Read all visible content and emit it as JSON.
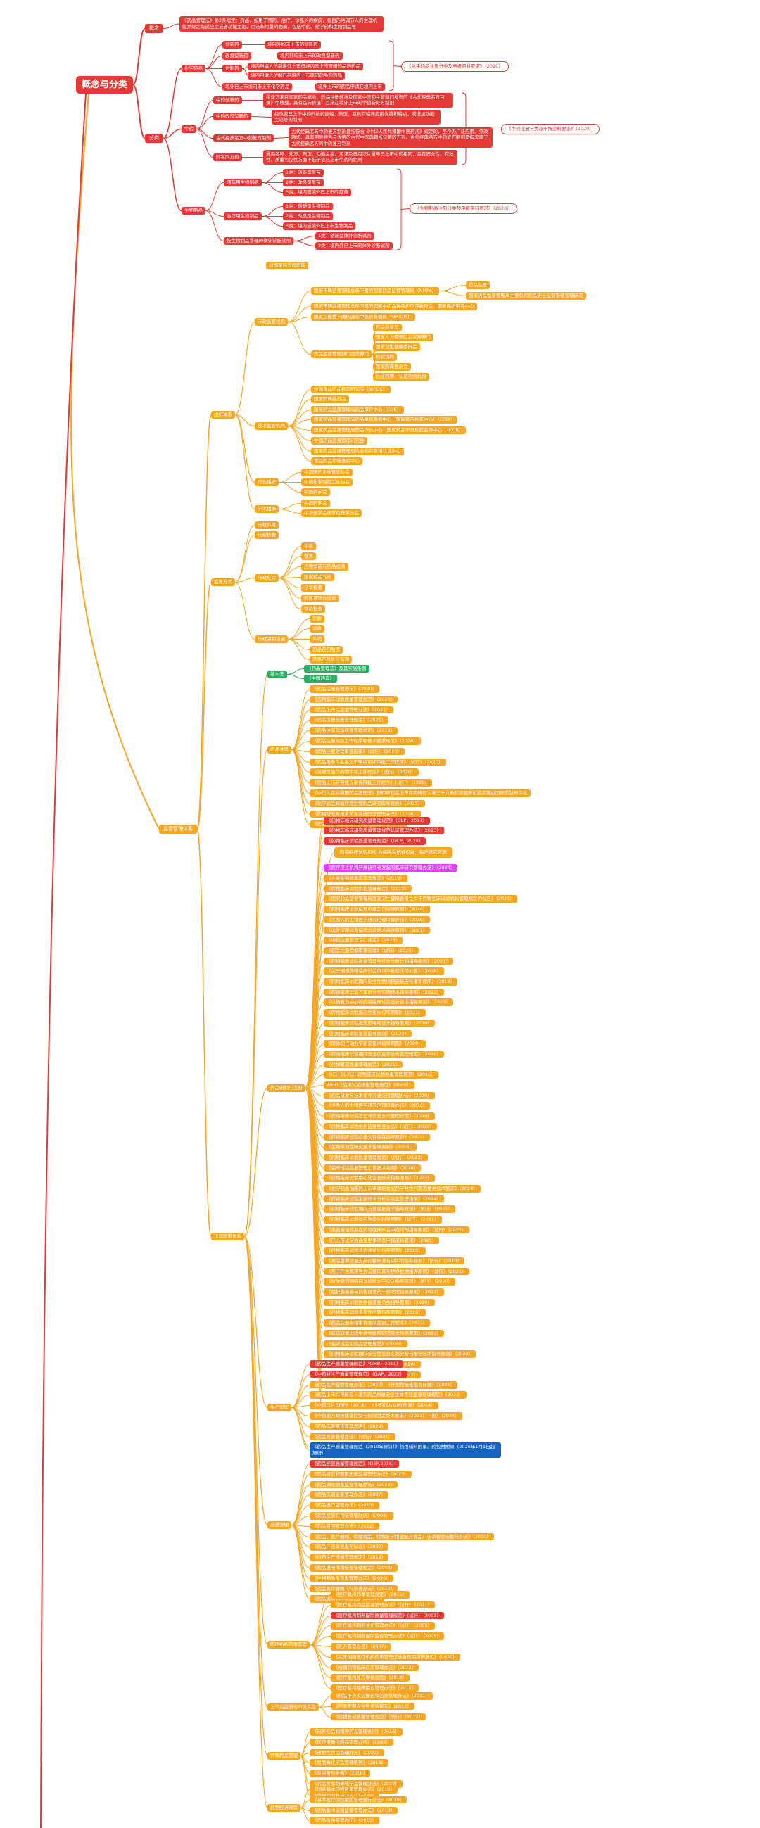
{
  "root": "概念与分类",
  "concept": {
    "label": "概念",
    "text": "《药品管理法》第2条规定：药品，指用于预防、治疗、诊断人的疾病，有目的地调节人的生理机能并规定有适应症或者功能主治、用法和用量的物质，包括中药、化学药和生物制品等"
  },
  "classify": {
    "label": "分类",
    "chem": {
      "label": "化学药品",
      "items": [
        "创新药",
        "改良型新药",
        "仿制药",
        "境外已上市境内未上市化学药品"
      ],
      "details": [
        "境内外均未上市的创新药",
        "境内外均未上市的改良型新药",
        "境内申请人仿制境外上市但境内未上市原研药品的药品",
        "境内申请人仿制已在境内上市原研药品的药品",
        "境外上市的药品申请在境内上市"
      ],
      "ref": "《化学药品注册分类及申报资料要求》（2020）"
    },
    "tcm": {
      "label": "中药",
      "items": [
        "中药创新药",
        "中药改良型新药",
        "古代经典名方中药复方制剂",
        "同名同方药"
      ],
      "details": [
        "指处方未在国家药品标准、药品注册标准及国家中医药主管部门发布的《古代经典名方目录》中收载，具有临床价值，且未在境外上市的中药新处方制剂",
        "指改变已上市中药的给药途径、剂型，且具有临床应用优势和特点，或增加功能主治等的制剂",
        "古代经典名方中药复方制剂是指符合《中华人民共和国中医药法》规定的，至今仍广泛应用、疗效确切、具有明显特色与优势的古代中医典籍所记载的方剂。古代经典名方中药复方制剂是指来源于古代经典名方的中药复方制剂",
        "通用名称、处方、剂型、功能主治、用法及日用饮片量与已上市中药相同，且在安全性、有效性、质量可控性方面不低于该已上市中药的制剂"
      ],
      "ref": "《中药注册分类及申报资料要求》（2020）"
    },
    "bio": {
      "label": "生物制品",
      "items": [
        "预防用生物制品",
        "治疗用生物制品",
        "按生物制品管理的体外诊断试剂"
      ],
      "details": [
        "1类：创新型疫苗",
        "2类：改良型疫苗",
        "3类：境内或境外已上市的疫苗",
        "1类：创新型生物制品",
        "2类：改良型生物制品",
        "3类：境内或境外已上市生物制品",
        "1类：创新型体外诊断试剂",
        "2类：境内外已上市的体外诊断试剂"
      ],
      "ref": "《生物制品注册分类及申报资料要求》（2020）"
    }
  },
  "system": {
    "label": "监管管理体系",
    "header": "1)国家药监局职能",
    "org": {
      "label": "组织体系",
      "admin": {
        "label": "行政监管机构",
        "items": [
          "国家市场监督管理总局下属的国家药品监督管理局（NMPA）",
          "国家市场监督管理总局下属的国家中药品种保护审评委员会、国家保护审评中心",
          "国家卫健委下属的国家中医药管理局（NATCM）",
          "药品监督管理部门组成部门"
        ],
        "nmpa": [
          "药品注册",
          "国家药品监督管理局主要负责药品安全监督管理管理研究"
        ],
        "parts": [
          "药品监督司",
          "国家人力资源社会保障部门",
          "国家卫生健康委员会",
          "检验机构",
          "国家药典委员会",
          "执业药师、认证检验机构"
        ]
      },
      "tech": {
        "label": "技术监管机构",
        "items": [
          "中国食品药品检定研究院（NIFDC）",
          "国家药典委员会",
          "国家药品监督管理局药品审评中心（CDE）",
          "国家药品监督管理局药品审核查验中心（国家疫苗检查中心）（CFDI）",
          "国家药品监督管理局药品评价中心（国家药品不良反应监测中心）（CDR）",
          "中国药品监督管理研究会",
          "国家药品监督管理局执业药师资格认证中心",
          "食品药品审核查验中心"
        ]
      },
      "industry": {
        "label": "行业组织",
        "items": [
          "中国医药企业管理协会",
          "中国化学制药工业协会",
          "中国药学会"
        ]
      },
      "academic": {
        "label": "学术组织",
        "items": [
          "中国药学会",
          "中华医学会医学伦理学分会"
        ]
      }
    },
    "regulation": {
      "label": "监管方式",
      "items": [
        "行政许可",
        "行政检查",
        "行政处罚",
        "行政强制措施"
      ],
      "check": [
        "审批",
        "备案",
        "药物警戒与药品追溯",
        "国家药品飞检",
        "日常检查",
        "跨区域联合检查",
        "体系检查"
      ],
      "enforce": [
        "罚款",
        "没收",
        "吊销",
        "药品召回制度",
        "药品不良反应监测"
      ]
    },
    "laws": {
      "label": "法规政策体系",
      "basic": {
        "label": "基本法",
        "items": [
          "《药品管理法》及其实施条例",
          "《中国药典》"
        ]
      },
      "reg": {
        "label": "药品注册",
        "items": [
          "《药品注册管理办法》（2020）",
          "《药物临床试验质量管理规范》（2020）",
          "《药品上市后变更管理办法》（2021）",
          "《药品注册核查管理规定》（2021）",
          "《药品注册现场核查管理规定》（2019）",
          "《药品注册检验工作程序和技术要求规范》（2020）",
          "《药品注册受理审查指南》（试行）（2020）",
          "《药品附条件批准上市申请审评审批工作程序》（试行）（2020）",
          "《突破性治疗药物审评工作程序》（试行）（2020）",
          "《药品上市许可优先审评审批工作程序》（试行）（2020）",
          "《中华人民共和国药品管理法》第四章药品上市许可持有人第三十八条药物临床试验实施由国家药监局审批",
          "《化学药品和治疗用生物制品研究指导原则》（2023）",
          "《药物研发与技术审评沟通交流管理办法》（2018）",
          "《药品审评审批信息公开管理办法》（2021）"
        ]
      },
      "research": {
        "label": "药品研制与注册",
        "head": [
          "《药物非临床研究质量管理规范》（GLP，2017）",
          "《药物非临床研究质量管理规范认证管理办法》（2023）",
          "《药物临床试验质量管理规范》（GCP，2020）"
        ],
        "note": "药物临床试验机构 为保障受试者权益，临床研究实施",
        "magenta": "《医疗卫生机构开展研究者发起的临床研究管理办法》（2024）",
        "items": [
          "《人类生物样本库管理规范》（2019）",
          "《药物临床试验机构管理规定》（2019）",
          "《国家药品监督管理局国家卫生健康委员会关于药物临床试验机构管理规定的公告》（2022）",
          "《药物临床试验伦理审查工作指导原则》（2010）",
          "《涉及人的生物医学研究伦理审查办法》（2016）",
          "《体外诊断试剂临床试验技术指导原则》（2021）",
          "《中药注册管理专门规定》（2023）",
          "《药品注册受理审查指南》（试行）（2020）",
          "《药物临床试验数据管理与统计分析计划指导原则》（2021）",
          "《关于调整药物临床试验审评审批程序的公告》（2018）",
          "《药物临床试验期间安全性数据快速报告标准和程序》（2018）",
          "《药物临床试验方案设计与实施技术指导原则》（2022）",
          "《以患者为中心的药物临床试验设计技术指导原则》（2023）",
          "《药物临床试验适应性设计指导原则》（2021）",
          "《药物临床试验富集策略与设计指导原则》（2020）",
          "《药物临床试验盲法指导原则》（2022）",
          "《群体药代动力学研究技术指导原则》（2020）",
          "《药物临床试验期间安全信息评估与管理规范》（2020）",
          "《药物警戒质量管理规范》（2021）",
          "《ICH E6(R2) 药物临床试验质量管理规范》（2016）",
          "WHO《临床试验质量管理规范》（2005）",
          "《药品研发与技术审评沟通交流管理办法》（2020）",
          "《涉及人的生物医学研究伦理审查办法》（2016）",
          "《药物临床试验登记与信息公示管理规范》（2020）",
          "《药物临床试验机构监督检查办法》（试行）（2023）",
          "《药物临床试验必备文件保存指导原则》（2020）",
          "《生物等效性研究技术指导原则》（2016）",
          "《药物临床试验质量管理规范》（试行）（2023）",
          "《临床试验数据管理工作技术指南》（2016）",
          "《药物临床试验中心化监查统计指导原则》（2022）",
          "《化学药品创新药上市申请前会议药学共性问题及相关技术要求》（2024）",
          "《药物临床试验生物样本分析实验室管理指南》（2024）",
          "《药物临床试验期间方案变更技术指导原则》（试行）（2022）",
          "《药物临床试验适应性设计指导原则》（试行）（2021）",
          "《患者报告结局在药物临床研发中应用的指导原则》（试行）（2021）",
          "《已上市化学药品变更事项及申报资料要求》（2021）",
          "《药物临床试验非劣效设计指导原则》（2020）",
          "《真实世界证据支持药物研发与审评的指导原则》（试行）（2020）",
          "《用于产生真实世界证据的真实世界数据指导原则》（试行）（2021）",
          "《抗肿瘤药物临床试验统计学设计指导原则》（试行）（2020）",
          "《组织患者参与药物研发的一般考虑指导原则》（2022）",
          "《药物临床试验数据监查委员会指导原则》（2020）",
          "《药物临床试验多重性问题指导原则》（2020）",
          "《药品注册申请审评期间变更工作程序》（2022）",
          "《新药研发过程中食物影响研究技术指导原则》（2021）",
          "《临床试验用药品管理规范》（2020）",
          "《药物临床试验期间安全性信息汇总分析与报告技术指导原则》（2023）",
          "《药物临床试验数据递交指导原则》（2020）",
          "《药物临床试验随机分配指导原则》（2022）",
          "《临床研究数据管理与统计分析计划和报告指导原则》（2021）",
          "《模型引导的药物研发技术指导原则》（2020）",
          "《罕见疾病药物临床研发技术指导原则》（2021）",
          "《基于人用经验的中药复方制剂新药临床研发指导原则》（2024）"
        ]
      },
      "prod": {
        "label": "生产管理",
        "items": [
          "《药品生产质量管理规范》（GMP，2011）",
          "《中药材生产质量管理规范》（GAP，2022）",
          "《药品生产监督管理办法》（2020）",
          "《药品上市许可持有人落实药品质量安全主体责任监督管理规定》（2022）",
          "《中药饮片GMP》（2014） 《中药饮片GMP附录》（2014）",
          "《中药配方颗粒质量控制与标准制定技术要求》（2021）",
          "《药品年度报告管理规定》（2022）",
          "《药品检查管理办法》（试行）（2021）",
          "《药品记录与数据管理要求》（试行）（2020）"
        ],
        "blue": "《药品生产质量管理规范（2010年修订）》药用辅料附录、药包材附录（2026年1月1日起施行）"
      },
      "biz": {
        "label": "流通管理",
        "items": [
          "《药品经营质量管理规范》（GSP,2016）",
          "《药品经营和使用质量监督管理办法》（2023）",
          "《药品网络销售监督管理办法》（2022）",
          "《药品流通监督管理办法》（2007）",
          "《药品进口管理办法》（2012）",
          "《药品经营许可证管理办法》（2004）",
          "《药品召回管理办法》（2022）",
          "《药品、医疗器械、保健食品、特殊医学用途配方食品广告审查管理暂行办法》（2020）",
          "《药品广告审查发布标准》（2007）",
          "《疫苗生产流通管理规定》（2022）",
          "《药品说明书和标签管理规定》（2006）",
          "《生物制品批签发管理办法》（2020）",
          "《药品医疗器械飞行检查办法》（2015）",
          "《药品追溯码标识规范》（2024）"
        ]
      },
      "hosp": {
        "label": "医疗机构药事管理",
        "items": [
          "《医疗机构药事管理规定》（2011）",
          "《医疗机构药品监督管理办法》（试行）（2011）",
          "《医疗机构制剂配制质量管理规范》（试行）（2001）",
          "《医疗机构制剂注册管理办法》（试行）（2005）",
          "《医疗机构制剂配制监督管理办法》（试行）（2005）",
          "《处方管理办法》（2007）",
          "《关于加强医疗机构药事管理促进合理用药的意见》（2020）",
          "《抗菌药物临床应用管理办法》（2012）",
          "《医疗机构处方审核规范》（2018）",
          "《医疗机构临床用血管理办法》（2012）"
        ],
        "red": "《医疗机构制剂配制质量管理规范》（试行）（2001）"
      },
      "special": {
        "label": "上市后监测与不良反应",
        "items": [
          "《药品不良反应报告和监测管理办法》（2011）",
          "《药品定期安全性更新报告》（2012）",
          "《药物警戒质量管理规范》（试行）（2012）"
        ]
      },
      "price": {
        "label": "特殊药品管理",
        "items": [
          "《麻醉药品和精神药品管理条例》（2016）",
          "《医疗用毒性药品管理办法》（1988）",
          "《放射性药品管理办法》（2022）",
          "《易制毒化学品管理条例》（2018）",
          "《反兴奋剂条例》（2018）",
          "《药品类易制毒化学品管理办法》（2010）",
          "《戒毒药品管理办法》（1999）"
        ]
      },
      "other": {
        "label": "药物经济政策",
        "items": [
          "《国家基本药物目录管理办法》（2015）",
          "《基本医疗保险用药管理暂行办法》（2020）",
          "《药品集中采购监督管理办法》（2010）",
          "《药品价格管理办法》（2015）"
        ]
      }
    }
  }
}
